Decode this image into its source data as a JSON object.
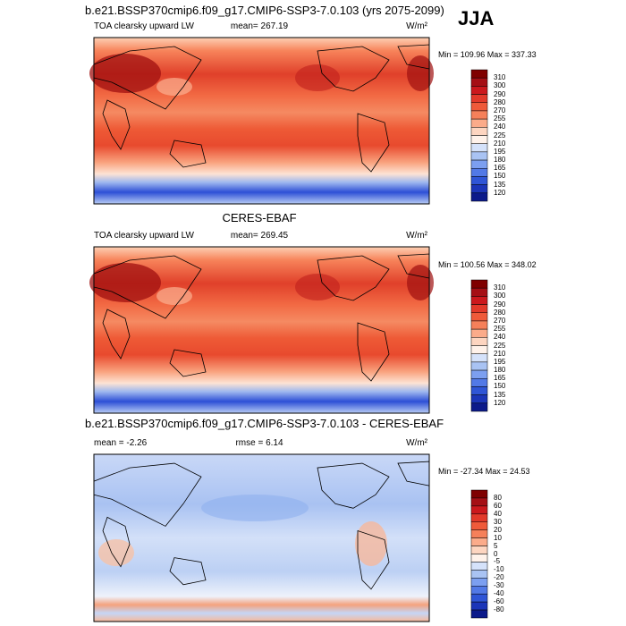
{
  "season": "JJA",
  "panels": [
    {
      "title": "b.e21.BSSP370cmip6.f09_g17.CMIP6-SSP3-7.0.103 (yrs 2075-2099)",
      "left": "TOA clearsky upward LW",
      "center": "mean= 267.19",
      "units": "W/m²",
      "minmax": "Min = 109.96 Max = 337.33",
      "colorbar": [
        "310",
        "300",
        "290",
        "280",
        "270",
        "255",
        "240",
        "225",
        "210",
        "195",
        "180",
        "165",
        "150",
        "135",
        "120"
      ]
    },
    {
      "title": "CERES-EBAF",
      "left": "TOA clearsky upward LW",
      "center": "mean= 269.45",
      "units": "W/m²",
      "minmax": "Min = 100.56 Max = 348.02",
      "colorbar": [
        "310",
        "300",
        "290",
        "280",
        "270",
        "255",
        "240",
        "225",
        "210",
        "195",
        "180",
        "165",
        "150",
        "135",
        "120"
      ]
    },
    {
      "title": "b.e21.BSSP370cmip6.f09_g17.CMIP6-SSP3-7.0.103 - CERES-EBAF",
      "left": "mean =  -2.26",
      "center": "rmse =   6.14",
      "units": "W/m²",
      "minmax": "Min = -27.34 Max =  24.53",
      "colorbar": [
        "80",
        "60",
        "40",
        "30",
        "20",
        "10",
        "5",
        "0",
        "-5",
        "-10",
        "-20",
        "-30",
        "-40",
        "-60",
        "-80"
      ]
    }
  ]
}
